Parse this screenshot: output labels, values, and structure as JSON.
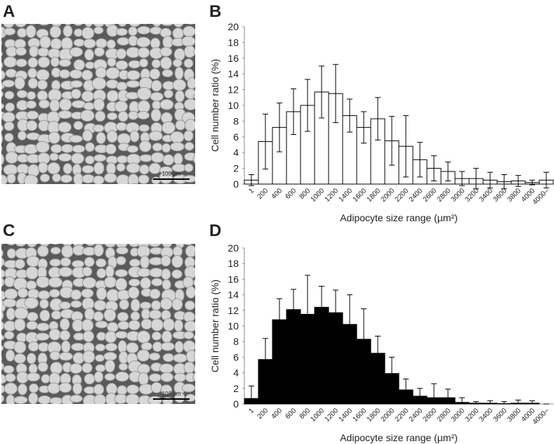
{
  "panels": [
    {
      "label": "A",
      "scale_bar": "100 µm"
    },
    {
      "label": "B"
    },
    {
      "label": "C",
      "scale_bar": "100 µm"
    },
    {
      "label": "D"
    }
  ],
  "chart_data": [
    {
      "type": "bar",
      "x_label": "Adipocyte size range (µm²)",
      "y_label": "Cell number ratio (%)",
      "categories": [
        "1",
        "200",
        "400",
        "600",
        "800",
        "1000",
        "1200",
        "1400",
        "1600",
        "1800",
        "2000",
        "2200",
        "2400",
        "2600",
        "2800",
        "3000",
        "3200",
        "3400",
        "3600",
        "3800",
        "4000",
        "4000–"
      ],
      "values": [
        0.5,
        5.4,
        7.2,
        9.2,
        10.0,
        11.7,
        11.5,
        8.7,
        7.2,
        8.3,
        5.5,
        4.8,
        3.1,
        2.0,
        1.6,
        0.7,
        0.7,
        0.5,
        0.3,
        0.4,
        0.2,
        0.5
      ],
      "errors": [
        0.7,
        3.5,
        3.1,
        2.9,
        3.3,
        3.3,
        3.7,
        2.1,
        2.0,
        2.7,
        3.1,
        3.9,
        2.2,
        1.6,
        1.2,
        0.9,
        1.3,
        1.0,
        0.9,
        0.7,
        0.3,
        1.0
      ],
      "color": "#ffffff",
      "edge_color": "#000000",
      "error_bars": "both",
      "ylim": [
        0,
        20
      ],
      "yticks": [
        0,
        2,
        4,
        6,
        8,
        10,
        12,
        14,
        16,
        18,
        20
      ]
    },
    {
      "type": "bar",
      "x_label": "Adipocyte size range (µm²)",
      "y_label": "Cell number ratio (%)",
      "categories": [
        "1",
        "200",
        "400",
        "600",
        "800",
        "1000",
        "1200",
        "1400",
        "1600",
        "1800",
        "2000",
        "2200",
        "2400",
        "2600",
        "2800",
        "3000",
        "3200",
        "3400",
        "3600",
        "3800",
        "4000",
        "4000–"
      ],
      "values": [
        0.7,
        5.7,
        10.8,
        12.1,
        11.5,
        12.4,
        11.7,
        10.2,
        8.3,
        6.5,
        3.9,
        1.8,
        1.0,
        0.8,
        0.8,
        0.2,
        0.1,
        0.1,
        0.05,
        0.1,
        0.1,
        0
      ],
      "errors": [
        1.6,
        2.7,
        2.7,
        2.6,
        5.0,
        2.7,
        2.9,
        3.8,
        3.9,
        2.2,
        2.1,
        1.4,
        1.0,
        1.8,
        1.1,
        0.6,
        0.2,
        0.3,
        0.25,
        0.4,
        0.3,
        0
      ],
      "color": "#000000",
      "edge_color": "#000000",
      "error_bars": "upper",
      "ylim": [
        0,
        20
      ],
      "yticks": [
        0,
        2,
        4,
        6,
        8,
        10,
        12,
        14,
        16,
        18,
        20
      ]
    }
  ]
}
